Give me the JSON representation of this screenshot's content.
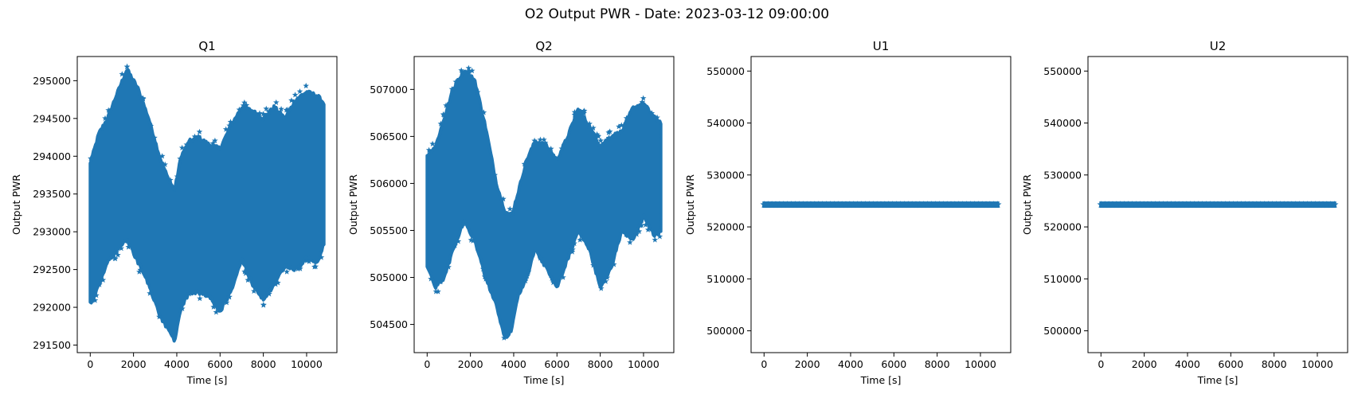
{
  "figure": {
    "title": "O2 Output PWR - Date: 2023-03-12 09:00:00",
    "accent_color": "#1f77b4",
    "marker": "star"
  },
  "chart_data": [
    {
      "type": "scatter",
      "title": "Q1",
      "xlabel": "Time [s]",
      "ylabel": "Output PWR",
      "xlim": [
        -600,
        11400
      ],
      "ylim": [
        291400,
        295320
      ],
      "xticks": [
        0,
        2000,
        4000,
        6000,
        8000,
        10000
      ],
      "xtick_labels": [
        "0",
        "2000",
        "4000",
        "6000",
        "8000",
        "10000"
      ],
      "yticks": [
        291500,
        292000,
        292500,
        293000,
        293500,
        294000,
        294500,
        295000
      ],
      "ytick_labels": [
        "291500",
        "292000",
        "292500",
        "293000",
        "293500",
        "294000",
        "294500",
        "295000"
      ],
      "x_range": [
        0,
        10800
      ],
      "envelope": {
        "t": [
          0,
          400,
          800,
          1200,
          1700,
          2200,
          2700,
          3200,
          3600,
          3900,
          4200,
          4600,
          5000,
          5500,
          6000,
          6500,
          7000,
          7500,
          8000,
          8500,
          9000,
          9500,
          10000,
          10500,
          10800
        ],
        "upper": [
          293900,
          294300,
          294500,
          294800,
          295150,
          294900,
          294500,
          294000,
          293700,
          293550,
          294000,
          294200,
          294250,
          294150,
          294100,
          294400,
          294650,
          294600,
          294500,
          294650,
          294500,
          294750,
          294850,
          294800,
          294700
        ],
        "lower": [
          292050,
          292300,
          292600,
          292750,
          292900,
          292600,
          292300,
          291900,
          291700,
          291550,
          292000,
          292200,
          292200,
          292150,
          291950,
          292200,
          292650,
          292300,
          292100,
          292300,
          292550,
          292500,
          292650,
          292600,
          292850
        ]
      }
    },
    {
      "type": "scatter",
      "title": "Q2",
      "xlabel": "Time [s]",
      "ylabel": "Output PWR",
      "xlim": [
        -600,
        11400
      ],
      "ylim": [
        504200,
        507350
      ],
      "xticks": [
        0,
        2000,
        4000,
        6000,
        8000,
        10000
      ],
      "xtick_labels": [
        "0",
        "2000",
        "4000",
        "6000",
        "8000",
        "10000"
      ],
      "yticks": [
        504500,
        505000,
        505500,
        506000,
        506500,
        507000
      ],
      "ytick_labels": [
        "504500",
        "505000",
        "505500",
        "506000",
        "506500",
        "507000"
      ],
      "x_range": [
        0,
        10800
      ],
      "envelope": {
        "t": [
          0,
          400,
          800,
          1200,
          1700,
          2200,
          2700,
          3200,
          3600,
          3900,
          4200,
          4600,
          5000,
          5500,
          6000,
          6500,
          7000,
          7500,
          8000,
          8500,
          9000,
          9500,
          10000,
          10500,
          10800
        ],
        "upper": [
          506300,
          506400,
          506700,
          507000,
          507200,
          507100,
          506600,
          506000,
          505700,
          505650,
          505900,
          506250,
          506450,
          506400,
          506250,
          506500,
          506800,
          506600,
          506400,
          506500,
          506550,
          506800,
          506850,
          506700,
          506650
        ],
        "lower": [
          505100,
          504900,
          505000,
          505300,
          505600,
          505400,
          505000,
          504700,
          504350,
          504450,
          504800,
          505000,
          505300,
          505100,
          504900,
          505200,
          505500,
          505300,
          504900,
          505100,
          505500,
          505400,
          505650,
          505450,
          505500
        ]
      }
    },
    {
      "type": "scatter",
      "title": "U1",
      "xlabel": "Time [s]",
      "ylabel": "Output PWR",
      "xlim": [
        -600,
        11400
      ],
      "ylim": [
        495800,
        552800
      ],
      "xticks": [
        0,
        2000,
        4000,
        6000,
        8000,
        10000
      ],
      "xtick_labels": [
        "0",
        "2000",
        "4000",
        "6000",
        "8000",
        "10000"
      ],
      "yticks": [
        500000,
        510000,
        520000,
        530000,
        540000,
        550000
      ],
      "ytick_labels": [
        "500000",
        "510000",
        "520000",
        "530000",
        "540000",
        "550000"
      ],
      "x_range": [
        0,
        10800
      ],
      "constant_value": 524288
    },
    {
      "type": "scatter",
      "title": "U2",
      "xlabel": "Time [s]",
      "ylabel": "Output PWR",
      "xlim": [
        -600,
        11400
      ],
      "ylim": [
        495800,
        552800
      ],
      "xticks": [
        0,
        2000,
        4000,
        6000,
        8000,
        10000
      ],
      "xtick_labels": [
        "0",
        "2000",
        "4000",
        "6000",
        "8000",
        "10000"
      ],
      "yticks": [
        500000,
        510000,
        520000,
        530000,
        540000,
        550000
      ],
      "ytick_labels": [
        "500000",
        "510000",
        "520000",
        "530000",
        "540000",
        "550000"
      ],
      "x_range": [
        0,
        10800
      ],
      "constant_value": 524288
    }
  ]
}
